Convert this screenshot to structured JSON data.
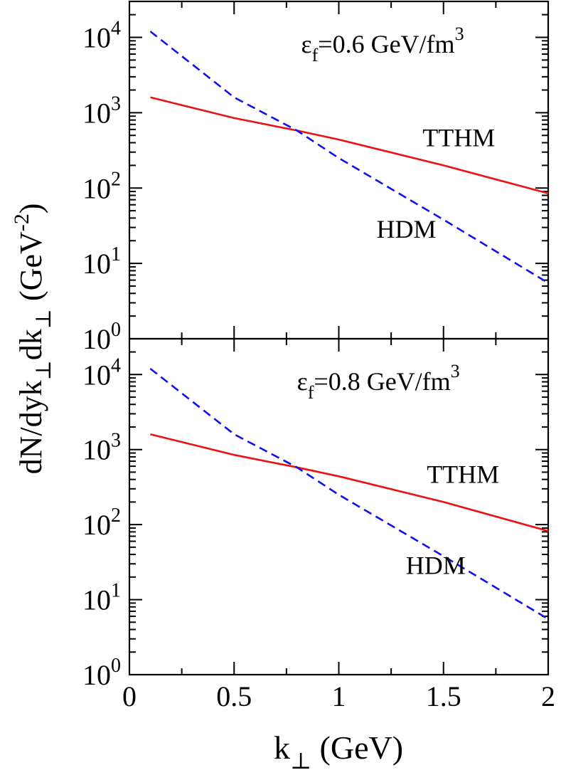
{
  "chart_data": {
    "type": "line",
    "shared_x_axis": true,
    "x_label": "k",
    "x_label_subscript": "⊥",
    "x_label_unit": "(GeV)",
    "y_label": "dN/dyk",
    "y_label_sub1": "⊥",
    "y_label_mid": "dk",
    "y_label_sub2": "⊥",
    "y_label_unit_open": "(GeV",
    "y_label_unit_exp": "-2",
    "y_label_unit_close": ")",
    "x_range": [
      0,
      2
    ],
    "x_ticks": [
      0,
      0.5,
      1,
      1.5,
      2
    ],
    "x_tick_labels": [
      "0",
      "0.5",
      "1",
      "1.5",
      "2"
    ],
    "y_scale": "log",
    "y_range": [
      1,
      30000
    ],
    "y_ticks": [
      1,
      10,
      100,
      1000,
      10000
    ],
    "y_tick_base": "10",
    "y_tick_exponents": [
      "0",
      "1",
      "2",
      "3",
      "4"
    ],
    "panels": [
      {
        "annotation": {
          "symbol": "ε",
          "sub": "f",
          "text": "=0.6 GeV/fm",
          "sup": "3"
        },
        "series": [
          {
            "name": "TTHM",
            "color": "#ee1111",
            "dash": "solid",
            "x": [
              0.1,
              0.5,
              0.8,
              1.0,
              1.5,
              2.0
            ],
            "y": [
              1600,
              850,
              580,
              440,
              200,
              85
            ]
          },
          {
            "name": "HDM",
            "color": "#1111ee",
            "dash": "dashed",
            "x": [
              0.1,
              0.5,
              0.8,
              1.0,
              1.5,
              2.0
            ],
            "y": [
              12000,
              1600,
              580,
              250,
              38,
              5.5
            ]
          }
        ],
        "labels": [
          {
            "text": "TTHM",
            "series": "TTHM"
          },
          {
            "text": "HDM",
            "series": "HDM"
          }
        ]
      },
      {
        "annotation": {
          "symbol": "ε",
          "sub": "f",
          "text": "=0.8 GeV/fm",
          "sup": "3"
        },
        "series": [
          {
            "name": "TTHM",
            "color": "#ee1111",
            "dash": "solid",
            "x": [
              0.1,
              0.5,
              0.8,
              1.0,
              1.5,
              2.0
            ],
            "y": [
              1600,
              850,
              580,
              440,
              200,
              82
            ]
          },
          {
            "name": "HDM",
            "color": "#1111ee",
            "dash": "dashed",
            "x": [
              0.1,
              0.5,
              0.8,
              1.0,
              1.5,
              2.0
            ],
            "y": [
              12000,
              1600,
              580,
              250,
              38,
              5.5
            ]
          }
        ],
        "labels": [
          {
            "text": "TTHM",
            "series": "TTHM"
          },
          {
            "text": "HDM",
            "series": "HDM"
          }
        ]
      }
    ]
  }
}
